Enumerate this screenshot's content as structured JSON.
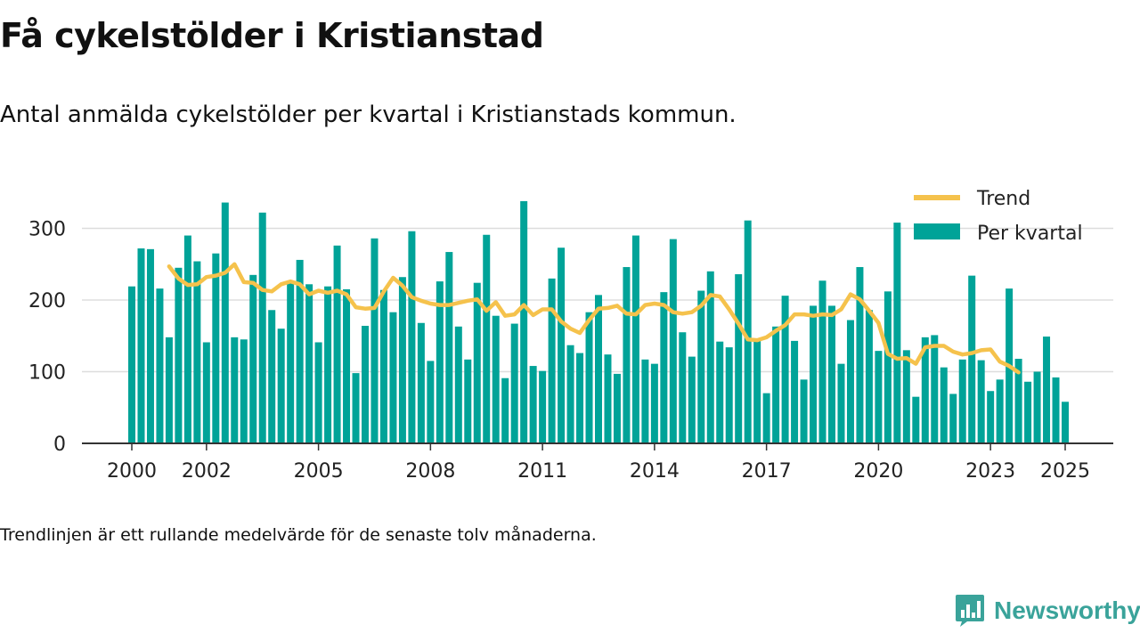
{
  "header": {
    "title": "Få cykelstölder i Kristianstad",
    "subtitle": "Antal anmälda cykelstölder per kvartal i Kristianstads kommun."
  },
  "footer": {
    "note": "Trendlinjen är ett rullande medelvärde för de senaste tolv månaderna."
  },
  "brand": {
    "name": "Newsworthy",
    "icon": "bar-chart-logo-icon",
    "color": "#3aa39a"
  },
  "colors": {
    "bars": "#00a398",
    "trend": "#f5c24c",
    "grid": "#dddddd",
    "axis": "#333333"
  },
  "chart_data": {
    "type": "bar",
    "x_unit": "quarter",
    "x_start": "2000 Q1",
    "ylim": [
      0,
      340
    ],
    "yticks": [
      0,
      100,
      200,
      300
    ],
    "xticks": [
      "2000",
      "2002",
      "2005",
      "2008",
      "2011",
      "2014",
      "2017",
      "2020",
      "2023",
      "2025"
    ],
    "grid": true,
    "legend_position": "top-right",
    "series": [
      {
        "name": "Per kvartal",
        "type": "bar",
        "values": [
          219,
          272,
          271,
          216,
          148,
          245,
          290,
          254,
          141,
          265,
          336,
          148,
          145,
          235,
          322,
          186,
          160,
          225,
          256,
          222,
          141,
          219,
          276,
          215,
          98,
          164,
          286,
          214,
          183,
          232,
          296,
          168,
          115,
          226,
          267,
          163,
          117,
          224,
          291,
          178,
          91,
          167,
          338,
          108,
          101,
          230,
          273,
          137,
          126,
          183,
          207,
          124,
          97,
          246,
          290,
          117,
          111,
          211,
          285,
          155,
          121,
          213,
          240,
          142,
          134,
          236,
          311,
          144,
          70,
          163,
          206,
          143,
          89,
          192,
          227,
          192,
          111,
          172,
          246,
          186,
          129,
          212,
          308,
          130,
          65,
          148,
          151,
          106,
          69,
          117,
          234,
          116,
          73,
          89,
          216,
          118,
          86,
          100,
          149,
          92,
          58
        ]
      },
      {
        "name": "Trend",
        "type": "line",
        "start_index": 4,
        "values": [
          247,
          230,
          221,
          222,
          232,
          234,
          238,
          250,
          225,
          224,
          214,
          212,
          222,
          226,
          222,
          208,
          213,
          210,
          213,
          208,
          190,
          188,
          189,
          212,
          231,
          220,
          204,
          199,
          195,
          193,
          193,
          196,
          199,
          201,
          185,
          197,
          178,
          180,
          193,
          179,
          187,
          187,
          170,
          160,
          154,
          172,
          188,
          189,
          192,
          181,
          180,
          193,
          195,
          193,
          183,
          181,
          183,
          192,
          207,
          205,
          187,
          167,
          145,
          144,
          148,
          157,
          165,
          180,
          180,
          178,
          180,
          179,
          187,
          208,
          201,
          185,
          168,
          125,
          118,
          119,
          111,
          134,
          136,
          136,
          128,
          124,
          126,
          130,
          131,
          114,
          108,
          99
        ]
      }
    ]
  }
}
